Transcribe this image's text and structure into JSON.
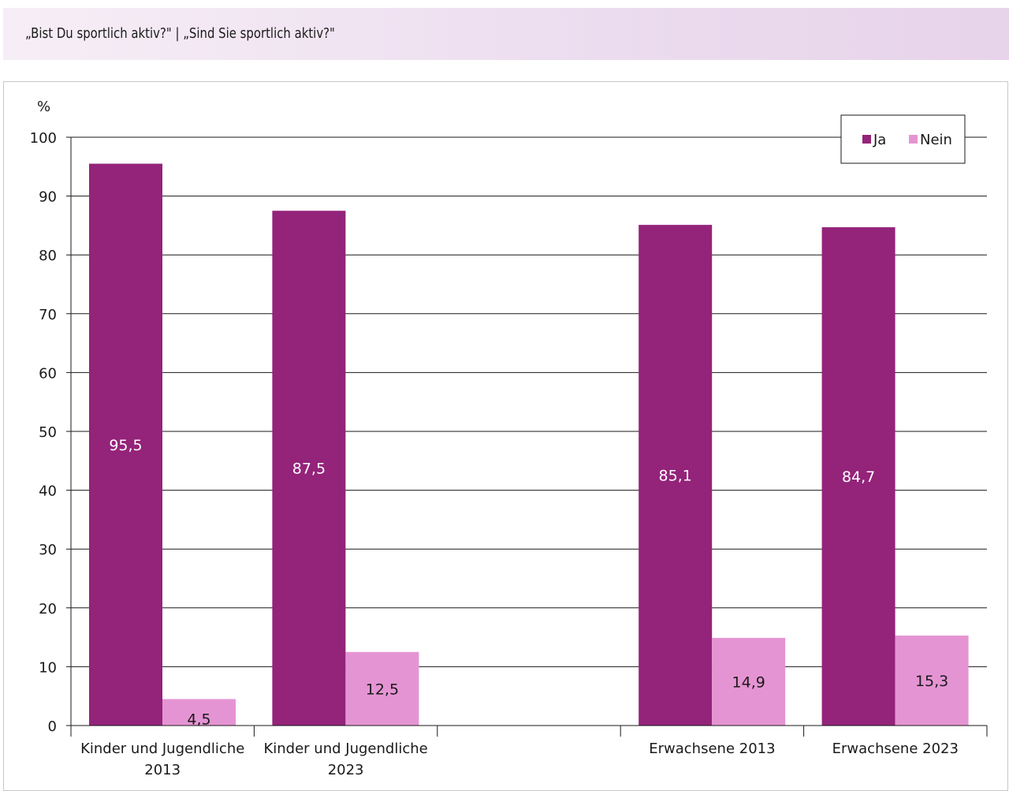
{
  "header": {
    "title": "„Bist Du sportlich aktiv?\" | „Sind Sie sportlich aktiv?\""
  },
  "chart_data": {
    "type": "bar",
    "ylabel": "%",
    "ylim": [
      0,
      100
    ],
    "yticks": [
      0,
      10,
      20,
      30,
      40,
      50,
      60,
      70,
      80,
      90,
      100
    ],
    "grid": true,
    "legend_position": "top-right",
    "categories": [
      [
        "Kinder und Jugendliche",
        "2013"
      ],
      [
        "Kinder und Jugendliche",
        "2023"
      ],
      [
        "",
        ""
      ],
      [
        "Erwachsene 2013",
        ""
      ],
      [
        "Erwachsene 2023",
        ""
      ]
    ],
    "series": [
      {
        "name": "Ja",
        "color": "#94237a",
        "label_color": "#ffffff",
        "values": [
          95.5,
          87.5,
          null,
          85.1,
          84.7
        ],
        "labels": [
          "95,5",
          "87,5",
          "",
          "85,1",
          "84,7"
        ]
      },
      {
        "name": "Nein",
        "color": "#e594d3",
        "label_color": "#1a1a1a",
        "values": [
          4.5,
          12.5,
          null,
          14.9,
          15.3
        ],
        "labels": [
          "4,5",
          "12,5",
          "",
          "14,9",
          "15,3"
        ]
      }
    ]
  }
}
